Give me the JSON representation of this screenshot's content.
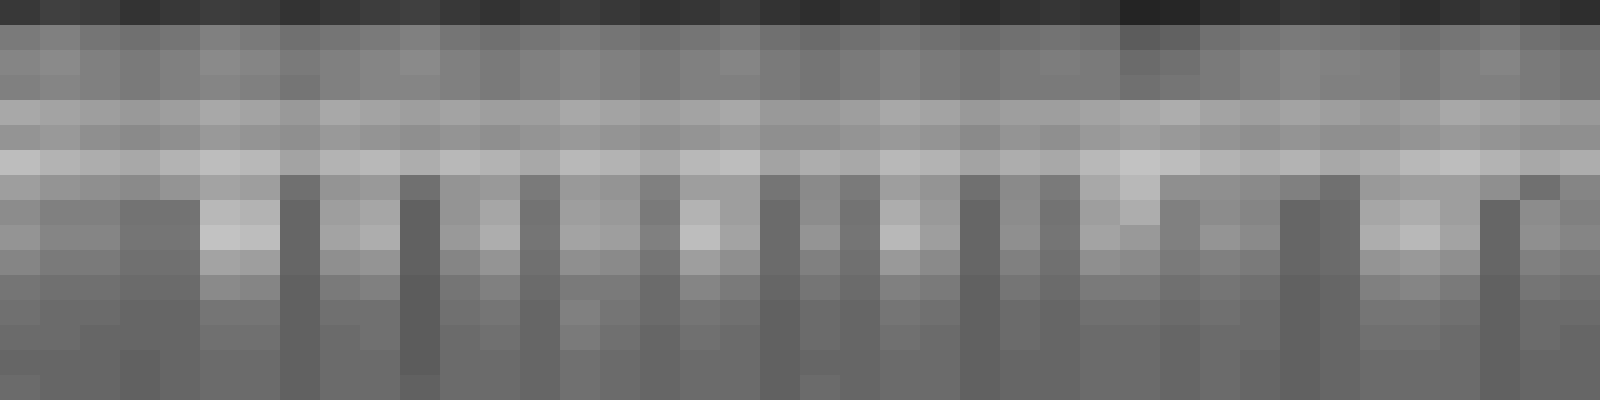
{
  "chart_data": {
    "type": "heatmap",
    "tick_labels": false,
    "zlim": [
      0,
      100
    ],
    "cells": [
      [
        22,
        25,
        24,
        20,
        22,
        24,
        23,
        20,
        22,
        24,
        25,
        22,
        20,
        22,
        24,
        22,
        20,
        21,
        23,
        20,
        18,
        20,
        22,
        20,
        18,
        20,
        21,
        20,
        14,
        15,
        18,
        20,
        22,
        21,
        20,
        18,
        20,
        22,
        20,
        18
      ],
      [
        48,
        50,
        46,
        44,
        46,
        50,
        48,
        44,
        46,
        48,
        50,
        46,
        44,
        46,
        48,
        46,
        44,
        46,
        48,
        44,
        42,
        44,
        46,
        44,
        42,
        44,
        45,
        44,
        36,
        38,
        44,
        46,
        48,
        47,
        46,
        44,
        46,
        48,
        44,
        42
      ],
      [
        52,
        54,
        50,
        48,
        50,
        54,
        52,
        48,
        50,
        52,
        54,
        50,
        48,
        50,
        52,
        50,
        48,
        50,
        52,
        48,
        46,
        48,
        50,
        48,
        46,
        48,
        49,
        48,
        42,
        44,
        48,
        50,
        52,
        51,
        50,
        48,
        50,
        52,
        48,
        46
      ],
      [
        50,
        52,
        50,
        48,
        50,
        52,
        50,
        46,
        50,
        52,
        52,
        50,
        48,
        50,
        52,
        50,
        48,
        50,
        50,
        48,
        46,
        48,
        50,
        48,
        46,
        48,
        48,
        48,
        44,
        46,
        48,
        50,
        52,
        50,
        50,
        48,
        50,
        50,
        48,
        46
      ],
      [
        66,
        64,
        62,
        60,
        62,
        66,
        64,
        60,
        66,
        64,
        62,
        64,
        62,
        62,
        66,
        64,
        62,
        64,
        66,
        60,
        60,
        62,
        66,
        64,
        60,
        62,
        62,
        64,
        66,
        68,
        64,
        62,
        64,
        62,
        60,
        62,
        66,
        64,
        62,
        60
      ],
      [
        58,
        60,
        56,
        54,
        56,
        60,
        58,
        56,
        60,
        58,
        56,
        58,
        56,
        58,
        60,
        58,
        56,
        58,
        60,
        56,
        56,
        58,
        60,
        58,
        54,
        58,
        56,
        60,
        62,
        60,
        58,
        56,
        58,
        56,
        56,
        58,
        60,
        58,
        56,
        56
      ],
      [
        74,
        70,
        68,
        66,
        70,
        74,
        72,
        64,
        70,
        72,
        68,
        72,
        70,
        66,
        72,
        70,
        66,
        72,
        74,
        64,
        68,
        66,
        72,
        70,
        64,
        68,
        66,
        72,
        76,
        74,
        70,
        68,
        70,
        66,
        68,
        72,
        74,
        70,
        66,
        68
      ],
      [
        62,
        58,
        56,
        54,
        58,
        64,
        62,
        44,
        58,
        60,
        44,
        58,
        60,
        48,
        60,
        58,
        50,
        62,
        62,
        46,
        54,
        48,
        62,
        58,
        44,
        54,
        48,
        66,
        72,
        56,
        56,
        54,
        50,
        44,
        60,
        62,
        62,
        56,
        44,
        52
      ],
      [
        55,
        50,
        50,
        45,
        45,
        72,
        70,
        40,
        62,
        65,
        38,
        58,
        65,
        45,
        62,
        60,
        48,
        70,
        62,
        42,
        55,
        45,
        68,
        60,
        40,
        55,
        45,
        62,
        68,
        50,
        55,
        52,
        40,
        42,
        65,
        68,
        62,
        40,
        55,
        50
      ],
      [
        58,
        52,
        52,
        46,
        46,
        76,
        74,
        40,
        64,
        68,
        38,
        60,
        68,
        46,
        64,
        62,
        50,
        74,
        64,
        42,
        58,
        46,
        72,
        62,
        40,
        56,
        46,
        64,
        60,
        50,
        58,
        54,
        40,
        42,
        68,
        72,
        64,
        40,
        56,
        52
      ],
      [
        52,
        48,
        48,
        44,
        44,
        64,
        62,
        40,
        56,
        58,
        38,
        52,
        58,
        44,
        56,
        54,
        46,
        62,
        56,
        42,
        50,
        44,
        60,
        54,
        40,
        50,
        44,
        56,
        54,
        48,
        50,
        48,
        40,
        42,
        58,
        60,
        56,
        40,
        50,
        48
      ],
      [
        46,
        44,
        44,
        42,
        42,
        54,
        52,
        38,
        48,
        50,
        36,
        46,
        50,
        42,
        48,
        48,
        42,
        52,
        48,
        40,
        46,
        42,
        50,
        48,
        38,
        46,
        42,
        48,
        48,
        44,
        46,
        44,
        38,
        40,
        50,
        52,
        48,
        38,
        46,
        44
      ],
      [
        44,
        42,
        42,
        40,
        40,
        46,
        46,
        38,
        44,
        44,
        36,
        44,
        46,
        40,
        50,
        46,
        42,
        46,
        44,
        38,
        42,
        40,
        46,
        44,
        38,
        42,
        40,
        44,
        44,
        42,
        44,
        42,
        38,
        40,
        46,
        46,
        44,
        38,
        42,
        42
      ],
      [
        42,
        42,
        40,
        40,
        40,
        44,
        44,
        38,
        42,
        44,
        36,
        42,
        44,
        40,
        48,
        44,
        40,
        44,
        42,
        38,
        42,
        40,
        44,
        42,
        38,
        42,
        40,
        42,
        42,
        40,
        42,
        42,
        38,
        40,
        44,
        44,
        42,
        38,
        42,
        40
      ],
      [
        40,
        40,
        40,
        38,
        40,
        42,
        42,
        38,
        42,
        42,
        36,
        42,
        42,
        40,
        44,
        42,
        40,
        42,
        42,
        38,
        40,
        40,
        42,
        42,
        38,
        40,
        40,
        42,
        42,
        40,
        42,
        40,
        38,
        40,
        42,
        42,
        42,
        38,
        40,
        40
      ],
      [
        42,
        40,
        40,
        38,
        40,
        42,
        42,
        38,
        42,
        42,
        38,
        42,
        42,
        40,
        44,
        42,
        40,
        42,
        42,
        38,
        42,
        40,
        42,
        42,
        38,
        40,
        40,
        42,
        42,
        40,
        42,
        40,
        38,
        40,
        42,
        42,
        42,
        38,
        40,
        40
      ]
    ]
  }
}
